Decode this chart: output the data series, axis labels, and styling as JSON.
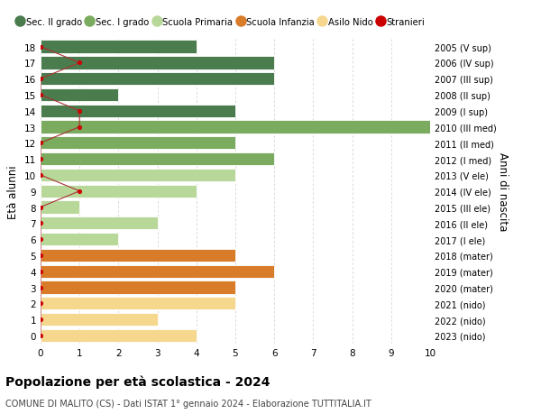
{
  "ages": [
    18,
    17,
    16,
    15,
    14,
    13,
    12,
    11,
    10,
    9,
    8,
    7,
    6,
    5,
    4,
    3,
    2,
    1,
    0
  ],
  "years": [
    "2005 (V sup)",
    "2006 (IV sup)",
    "2007 (III sup)",
    "2008 (II sup)",
    "2009 (I sup)",
    "2010 (III med)",
    "2011 (II med)",
    "2012 (I med)",
    "2013 (V ele)",
    "2014 (IV ele)",
    "2015 (III ele)",
    "2016 (II ele)",
    "2017 (I ele)",
    "2018 (mater)",
    "2019 (mater)",
    "2020 (mater)",
    "2021 (nido)",
    "2022 (nido)",
    "2023 (nido)"
  ],
  "bar_values": [
    4,
    6,
    6,
    2,
    5,
    10,
    5,
    6,
    5,
    4,
    1,
    3,
    2,
    5,
    6,
    5,
    5,
    3,
    4
  ],
  "bar_colors": [
    "#4a7c4e",
    "#4a7c4e",
    "#4a7c4e",
    "#4a7c4e",
    "#4a7c4e",
    "#7aab5e",
    "#7aab5e",
    "#7aab5e",
    "#b8d89a",
    "#b8d89a",
    "#b8d89a",
    "#b8d89a",
    "#b8d89a",
    "#d97c2a",
    "#d97c2a",
    "#d97c2a",
    "#f5d78e",
    "#f5d78e",
    "#f5d78e"
  ],
  "stranieri_values": [
    0,
    1,
    0,
    0,
    1,
    1,
    0,
    0,
    0,
    1,
    0,
    0,
    0,
    0,
    0,
    0,
    0,
    0,
    0
  ],
  "stranieri_color": "#cc0000",
  "line_color": "#aa3333",
  "title": "Popolazione per età scolastica - 2024",
  "subtitle": "COMUNE DI MALITO (CS) - Dati ISTAT 1° gennaio 2024 - Elaborazione TUTTITALIA.IT",
  "ylabel": "Età alunni",
  "ylabel_right": "Anni di nascita",
  "xlim": [
    0,
    10
  ],
  "xticks": [
    0,
    1,
    2,
    3,
    4,
    5,
    6,
    7,
    8,
    9,
    10
  ],
  "legend_labels": [
    "Sec. II grado",
    "Sec. I grado",
    "Scuola Primaria",
    "Scuola Infanzia",
    "Asilo Nido",
    "Stranieri"
  ],
  "legend_colors": [
    "#4a7c4e",
    "#7aab5e",
    "#b8d89a",
    "#d97c2a",
    "#f5d78e",
    "#cc0000"
  ],
  "legend_marker_types": [
    "rect",
    "rect",
    "rect",
    "rect",
    "rect",
    "circle"
  ],
  "bg_color": "#ffffff",
  "grid_color": "#cccccc",
  "bar_height": 0.8
}
